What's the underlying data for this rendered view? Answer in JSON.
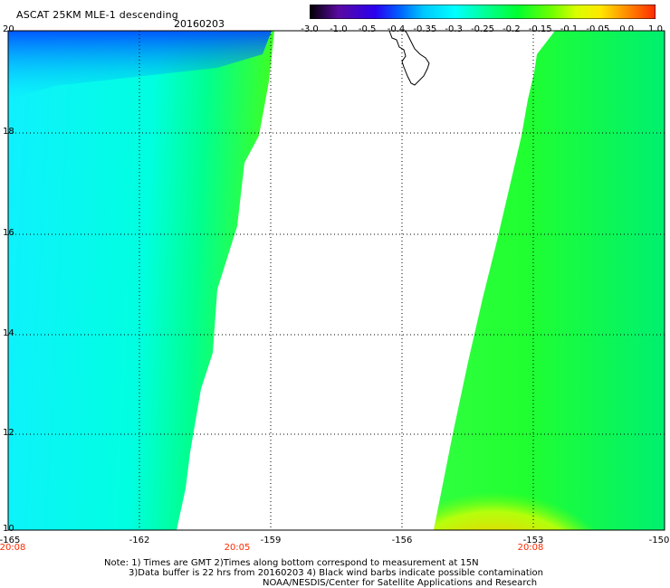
{
  "header": {
    "title": "ASCAT 25KM MLE-1 descending",
    "date": "20160203"
  },
  "colorbar": {
    "labels": [
      "-3.0",
      "-1.0",
      "-0.5",
      "-0.4",
      "-0.35",
      "-0.3",
      "-0.25",
      "-0.2",
      "-0.15",
      "-0.1",
      "-0.05",
      "0.0",
      "1.0"
    ],
    "colors": [
      "#000000",
      "#5a0aa0",
      "#2a00f0",
      "#0060ff",
      "#00b4ff",
      "#00ffff",
      "#00ffa0",
      "#00ff30",
      "#60ff00",
      "#d8ff00",
      "#ffe800",
      "#ff8800",
      "#ff2a00"
    ]
  },
  "axes": {
    "y_ticks": [
      "20",
      "18",
      "16",
      "14",
      "12",
      "10"
    ],
    "x_ticks": [
      "-165",
      "-162",
      "-159",
      "-156",
      "-153",
      "-150"
    ],
    "time_labels": [
      {
        "lon": "-165",
        "text": "20:08"
      },
      {
        "lon": "-160.5",
        "text": "20:05"
      },
      {
        "lon": "-153",
        "text": "20:08"
      }
    ]
  },
  "notes": {
    "line1": "Note: 1) Times are GMT 2)Times along bottom correspond to measurement at 15N",
    "line2": "3)Data buffer is 22 hrs from 20160203 4) Black wind barbs indicate possible contamination",
    "line3": "NOAA/NESDIS/Center for Satellite Applications and Research"
  }
}
